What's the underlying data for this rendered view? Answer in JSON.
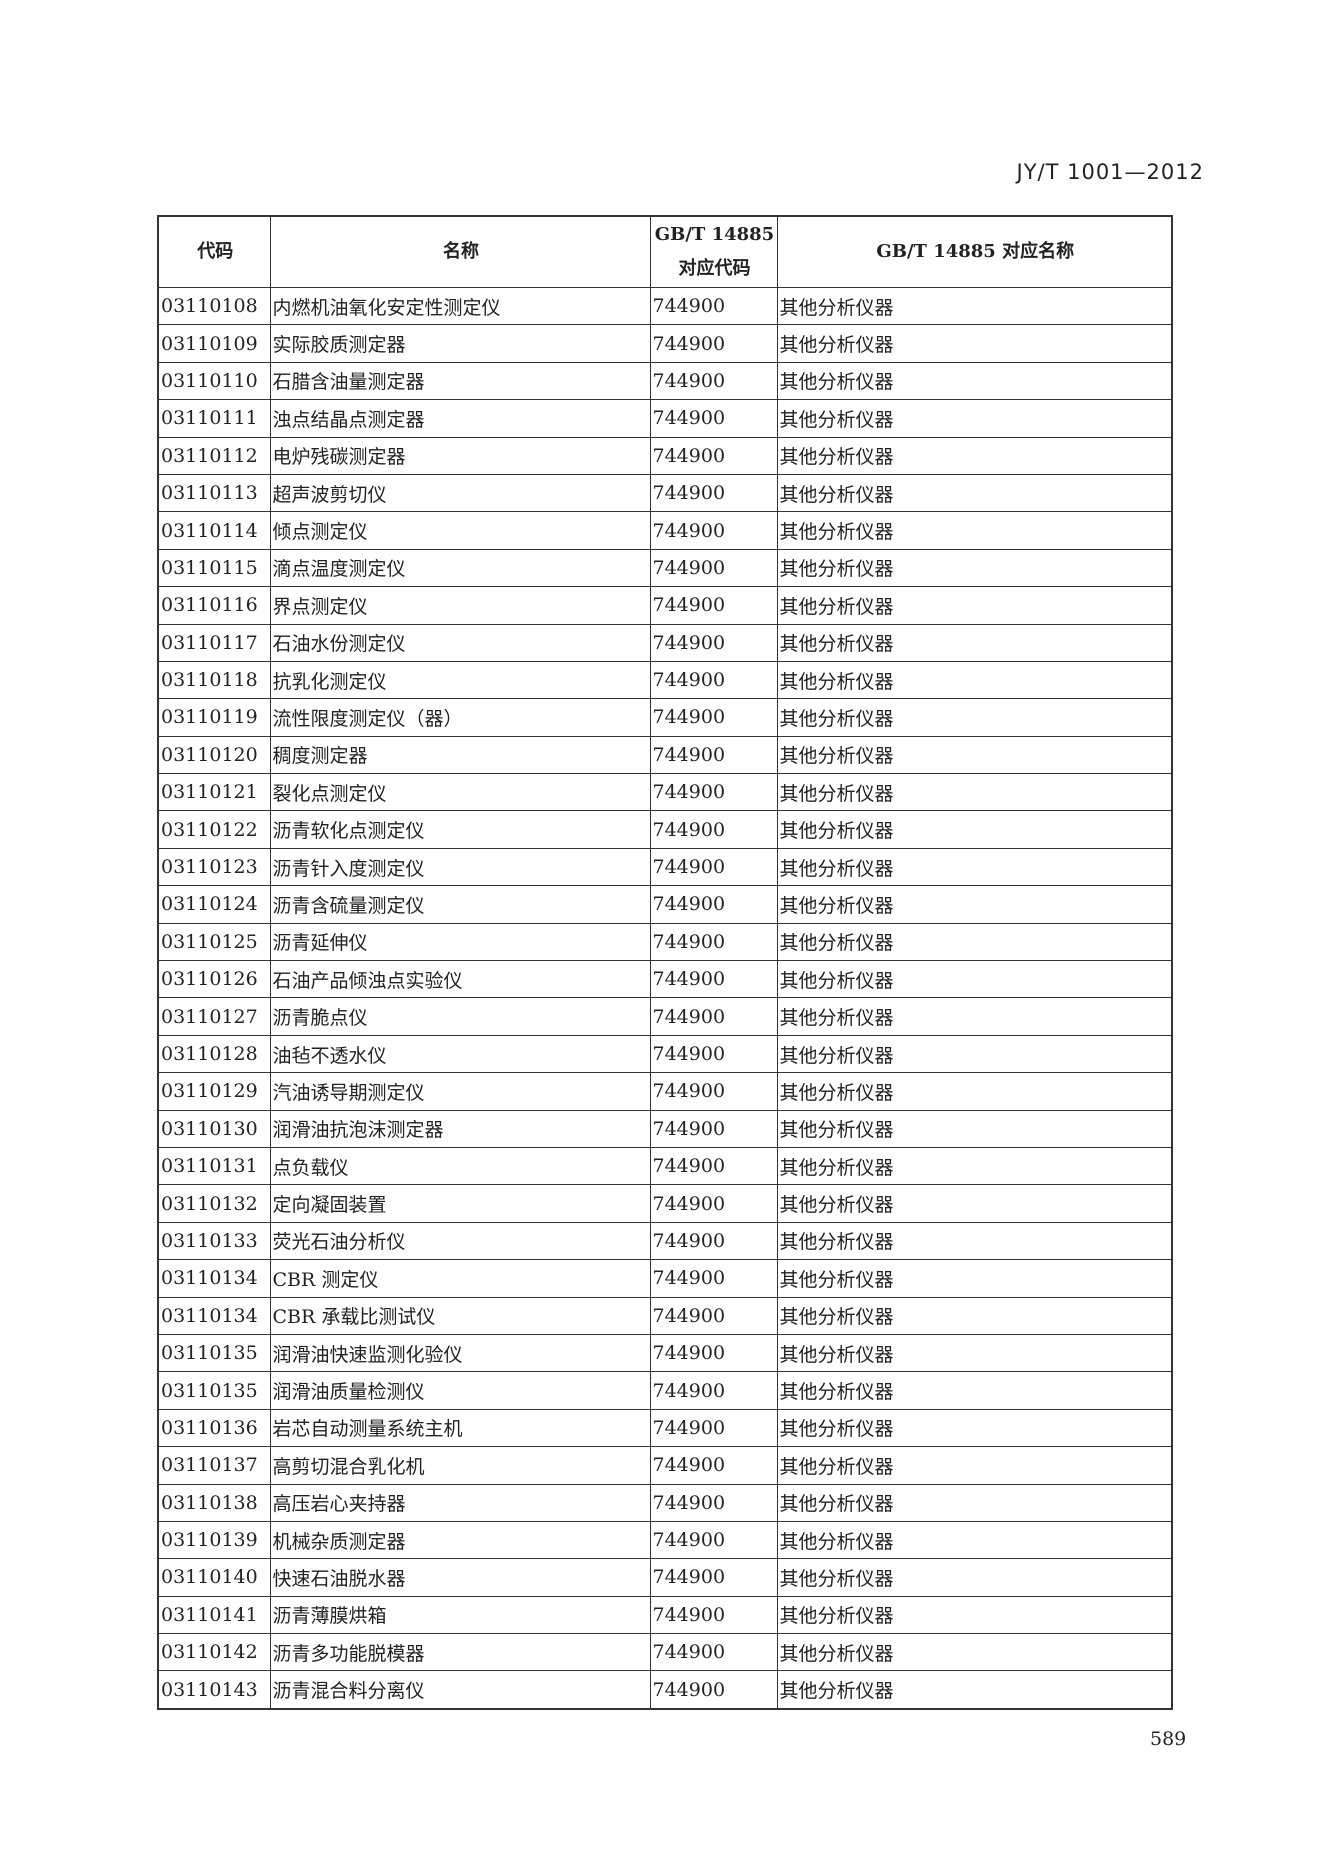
{
  "header": {
    "doc_id": "JY/T 1001—2012"
  },
  "table": {
    "columns": [
      "代码",
      "名称",
      [
        "GB/T 14885",
        "对应代码"
      ],
      "GB/T 14885 对应名称"
    ],
    "rows": [
      [
        "03110108",
        "内燃机油氧化安定性测定仪",
        "744900",
        "其他分析仪器"
      ],
      [
        "03110109",
        "实际胶质测定器",
        "744900",
        "其他分析仪器"
      ],
      [
        "03110110",
        "石腊含油量测定器",
        "744900",
        "其他分析仪器"
      ],
      [
        "03110111",
        "浊点结晶点测定器",
        "744900",
        "其他分析仪器"
      ],
      [
        "03110112",
        "电炉残碳测定器",
        "744900",
        "其他分析仪器"
      ],
      [
        "03110113",
        "超声波剪切仪",
        "744900",
        "其他分析仪器"
      ],
      [
        "03110114",
        "倾点测定仪",
        "744900",
        "其他分析仪器"
      ],
      [
        "03110115",
        "滴点温度测定仪",
        "744900",
        "其他分析仪器"
      ],
      [
        "03110116",
        "界点测定仪",
        "744900",
        "其他分析仪器"
      ],
      [
        "03110117",
        "石油水份测定仪",
        "744900",
        "其他分析仪器"
      ],
      [
        "03110118",
        "抗乳化测定仪",
        "744900",
        "其他分析仪器"
      ],
      [
        "03110119",
        "流性限度测定仪（器）",
        "744900",
        "其他分析仪器"
      ],
      [
        "03110120",
        "稠度测定器",
        "744900",
        "其他分析仪器"
      ],
      [
        "03110121",
        "裂化点测定仪",
        "744900",
        "其他分析仪器"
      ],
      [
        "03110122",
        "沥青软化点测定仪",
        "744900",
        "其他分析仪器"
      ],
      [
        "03110123",
        "沥青针入度测定仪",
        "744900",
        "其他分析仪器"
      ],
      [
        "03110124",
        "沥青含硫量测定仪",
        "744900",
        "其他分析仪器"
      ],
      [
        "03110125",
        "沥青延伸仪",
        "744900",
        "其他分析仪器"
      ],
      [
        "03110126",
        "石油产品倾浊点实验仪",
        "744900",
        "其他分析仪器"
      ],
      [
        "03110127",
        "沥青脆点仪",
        "744900",
        "其他分析仪器"
      ],
      [
        "03110128",
        "油毡不透水仪",
        "744900",
        "其他分析仪器"
      ],
      [
        "03110129",
        "汽油诱导期测定仪",
        "744900",
        "其他分析仪器"
      ],
      [
        "03110130",
        "润滑油抗泡沫测定器",
        "744900",
        "其他分析仪器"
      ],
      [
        "03110131",
        "点负载仪",
        "744900",
        "其他分析仪器"
      ],
      [
        "03110132",
        "定向凝固装置",
        "744900",
        "其他分析仪器"
      ],
      [
        "03110133",
        "荧光石油分析仪",
        "744900",
        "其他分析仪器"
      ],
      [
        "03110134",
        "CBR 测定仪",
        "744900",
        "其他分析仪器"
      ],
      [
        "03110134",
        "CBR 承载比测试仪",
        "744900",
        "其他分析仪器"
      ],
      [
        "03110135",
        "润滑油快速监测化验仪",
        "744900",
        "其他分析仪器"
      ],
      [
        "03110135",
        "润滑油质量检测仪",
        "744900",
        "其他分析仪器"
      ],
      [
        "03110136",
        "岩芯自动测量系统主机",
        "744900",
        "其他分析仪器"
      ],
      [
        "03110137",
        "高剪切混合乳化机",
        "744900",
        "其他分析仪器"
      ],
      [
        "03110138",
        "高压岩心夹持器",
        "744900",
        "其他分析仪器"
      ],
      [
        "03110139",
        "机械杂质测定器",
        "744900",
        "其他分析仪器"
      ],
      [
        "03110140",
        "快速石油脱水器",
        "744900",
        "其他分析仪器"
      ],
      [
        "03110141",
        "沥青薄膜烘箱",
        "744900",
        "其他分析仪器"
      ],
      [
        "03110142",
        "沥青多功能脱模器",
        "744900",
        "其他分析仪器"
      ],
      [
        "03110143",
        "沥青混合料分离仪",
        "744900",
        "其他分析仪器"
      ]
    ]
  },
  "footer": {
    "page_number": "589"
  }
}
